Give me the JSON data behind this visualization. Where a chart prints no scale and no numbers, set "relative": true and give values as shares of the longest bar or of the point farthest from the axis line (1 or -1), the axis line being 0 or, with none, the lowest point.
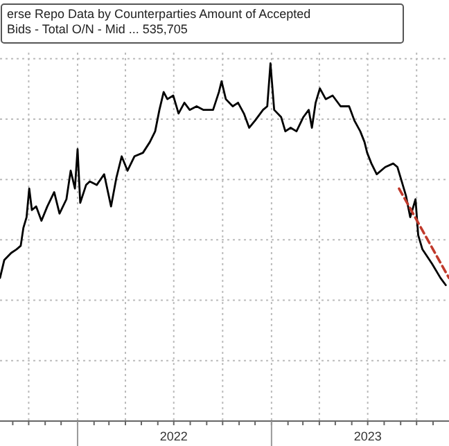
{
  "chart_data": {
    "type": "line",
    "title": "erse Repo Data by Counterparties Amount of Accepted Bids - Total O/N - Mid ... 535,705",
    "relative": true,
    "grid": true,
    "xlim": [
      "2021-08-08",
      "2023-12-01"
    ],
    "xticks": [
      {
        "value": "2021-10-01",
        "label": null
      },
      {
        "value": "2022-01-01",
        "label": null
      },
      {
        "value": "2022-04-01",
        "label": null
      },
      {
        "value": "2022-07-01",
        "label": "2022"
      },
      {
        "value": "2022-10-01",
        "label": null
      },
      {
        "value": "2023-01-01",
        "label": null
      },
      {
        "value": "2023-04-01",
        "label": null
      },
      {
        "value": "2023-07-01",
        "label": "2023"
      },
      {
        "value": "2023-10-01",
        "label": null
      }
    ],
    "series": [
      {
        "color": "#000000",
        "line_style": "solid",
        "x": [
          "2021-08-08",
          "2021-08-16",
          "2021-08-29",
          "2021-09-08",
          "2021-09-16",
          "2021-09-21",
          "2021-09-27",
          "2021-10-02",
          "2021-10-07",
          "2021-10-15",
          "2021-10-25",
          "2021-11-05",
          "2021-11-18",
          "2021-11-28",
          "2021-12-11",
          "2021-12-19",
          "2021-12-27",
          "2022-01-01",
          "2022-01-06",
          "2022-01-17",
          "2022-01-24",
          "2022-02-06",
          "2022-02-20",
          "2022-03-05",
          "2022-03-15",
          "2022-03-25",
          "2022-04-05",
          "2022-04-18",
          "2022-05-04",
          "2022-05-17",
          "2022-05-27",
          "2022-06-04",
          "2022-06-12",
          "2022-06-19",
          "2022-06-30",
          "2022-07-10",
          "2022-07-21",
          "2022-07-31",
          "2022-08-13",
          "2022-08-26",
          "2022-09-13",
          "2022-09-24",
          "2022-09-29",
          "2022-10-07",
          "2022-10-20",
          "2022-10-30",
          "2022-11-10",
          "2022-11-20",
          "2022-12-01",
          "2022-12-16",
          "2022-12-24",
          "2022-12-30",
          "2023-01-06",
          "2023-01-19",
          "2023-01-27",
          "2023-02-06",
          "2023-02-17",
          "2023-03-02",
          "2023-03-12",
          "2023-03-18",
          "2023-03-25",
          "2023-04-02",
          "2023-04-13",
          "2023-04-26",
          "2023-05-11",
          "2023-05-27",
          "2023-06-06",
          "2023-06-17",
          "2023-06-25",
          "2023-06-30",
          "2023-07-08",
          "2023-07-18",
          "2023-08-03",
          "2023-08-18",
          "2023-08-26",
          "2023-09-03",
          "2023-09-11",
          "2023-09-19",
          "2023-09-29",
          "2023-10-04",
          "2023-10-12",
          "2023-10-30",
          "2023-11-15",
          "2023-11-25"
        ],
        "values": [
          0.4,
          0.45,
          0.47,
          0.48,
          0.49,
          0.54,
          0.57,
          0.65,
          0.59,
          0.6,
          0.56,
          0.6,
          0.64,
          0.58,
          0.62,
          0.7,
          0.65,
          0.76,
          0.61,
          0.66,
          0.67,
          0.66,
          0.69,
          0.6,
          0.68,
          0.74,
          0.7,
          0.74,
          0.75,
          0.78,
          0.81,
          0.87,
          0.92,
          0.9,
          0.91,
          0.86,
          0.89,
          0.87,
          0.88,
          0.87,
          0.87,
          0.92,
          0.95,
          0.9,
          0.88,
          0.89,
          0.86,
          0.82,
          0.84,
          0.87,
          0.88,
          1,
          0.87,
          0.85,
          0.81,
          0.82,
          0.81,
          0.85,
          0.87,
          0.82,
          0.89,
          0.93,
          0.9,
          0.91,
          0.88,
          0.88,
          0.84,
          0.81,
          0.78,
          0.75,
          0.72,
          0.69,
          0.71,
          0.72,
          0.71,
          0.67,
          0.63,
          0.57,
          0.62,
          0.52,
          0.48,
          0.44,
          0.4,
          0.38
        ]
      },
      {
        "color": "#c0392b",
        "line_style": "dashed",
        "x": [
          "2023-08-29",
          "2023-12-01"
        ],
        "values": [
          0.65,
          0.4
        ]
      }
    ]
  }
}
